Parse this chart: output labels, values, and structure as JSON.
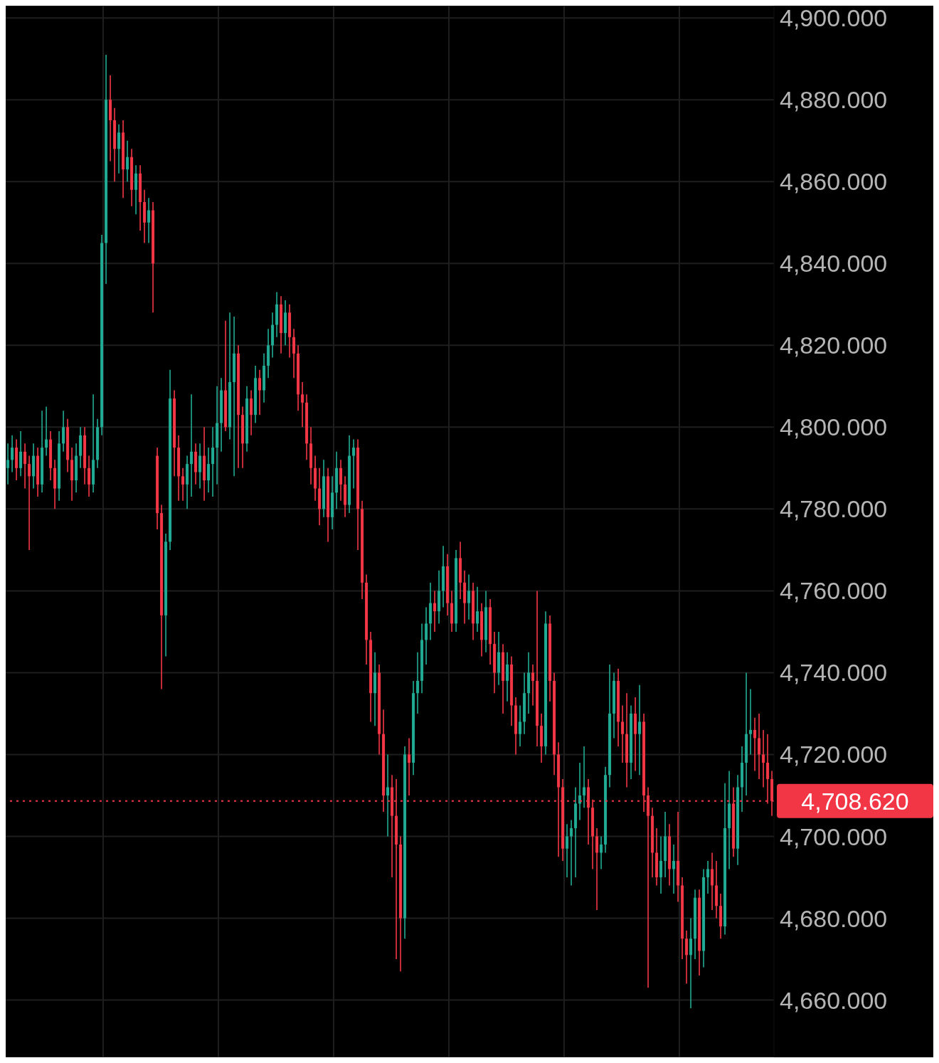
{
  "chart_data": {
    "type": "candlestick",
    "categories": [
      null,
      null,
      null,
      null,
      null,
      null,
      null,
      null,
      null,
      null,
      null,
      null,
      null,
      null,
      null,
      null,
      null,
      null,
      null,
      null,
      null,
      null,
      null,
      null,
      null,
      null,
      null,
      null,
      null,
      null,
      null,
      null,
      null,
      null,
      null,
      null,
      null,
      null,
      null,
      null,
      null,
      null,
      null,
      null,
      null,
      null,
      null,
      null,
      null,
      null,
      null,
      null,
      null,
      null,
      null,
      null,
      null,
      null,
      null,
      null,
      null,
      null,
      null,
      null,
      null,
      null,
      null,
      null,
      null,
      null,
      null,
      null,
      null,
      null,
      null,
      null,
      null,
      null,
      null,
      null,
      null,
      null,
      null,
      null,
      null,
      null,
      null,
      null,
      null,
      null,
      null,
      null,
      null,
      null,
      null,
      null,
      null,
      null,
      null,
      null,
      null,
      null,
      null,
      null,
      null,
      null,
      null,
      null,
      null,
      null,
      null,
      null,
      null,
      null,
      null,
      null,
      null,
      null,
      null,
      null,
      null,
      null,
      null,
      null,
      null,
      null,
      null,
      null,
      null,
      null,
      null,
      null,
      null,
      null,
      null,
      null,
      null,
      null,
      null,
      null,
      null,
      null,
      null,
      null,
      null,
      null,
      null,
      null,
      null,
      null,
      null,
      null,
      null,
      null,
      null,
      null,
      null,
      null,
      null,
      null,
      null,
      null,
      null,
      null,
      null,
      null,
      null,
      null,
      null,
      null,
      null,
      null,
      null,
      null,
      null,
      null,
      null,
      null,
      null,
      null
    ],
    "ohlc": [
      [
        4790,
        4796,
        4786,
        4792
      ],
      [
        4792,
        4798,
        4789,
        4795
      ],
      [
        4795,
        4797,
        4787,
        4790
      ],
      [
        4790,
        4799,
        4788,
        4794
      ],
      [
        4794,
        4796,
        4785,
        4791
      ],
      [
        4791,
        4793,
        4770,
        4788
      ],
      [
        4788,
        4796,
        4785,
        4793
      ],
      [
        4793,
        4795,
        4783,
        4786
      ],
      [
        4786,
        4804,
        4784,
        4795
      ],
      [
        4795,
        4805,
        4793,
        4797
      ],
      [
        4797,
        4799,
        4787,
        4790
      ],
      [
        4790,
        4792,
        4780,
        4785
      ],
      [
        4785,
        4799,
        4782,
        4796
      ],
      [
        4796,
        4804,
        4794,
        4800
      ],
      [
        4800,
        4802,
        4789,
        4792
      ],
      [
        4792,
        4795,
        4782,
        4787
      ],
      [
        4787,
        4796,
        4784,
        4793
      ],
      [
        4793,
        4800,
        4790,
        4798
      ],
      [
        4798,
        4800,
        4786,
        4790
      ],
      [
        4790,
        4793,
        4783,
        4786
      ],
      [
        4786,
        4808,
        4784,
        4792
      ],
      [
        4792,
        4802,
        4790,
        4800
      ],
      [
        4800,
        4847,
        4798,
        4845
      ],
      [
        4845,
        4891,
        4835,
        4880
      ],
      [
        4880,
        4886,
        4865,
        4875
      ],
      [
        4875,
        4878,
        4860,
        4868
      ],
      [
        4868,
        4874,
        4862,
        4872
      ],
      [
        4872,
        4875,
        4856,
        4863
      ],
      [
        4863,
        4870,
        4860,
        4866
      ],
      [
        4866,
        4868,
        4854,
        4858
      ],
      [
        4858,
        4864,
        4852,
        4862
      ],
      [
        4862,
        4864,
        4848,
        4855
      ],
      [
        4855,
        4858,
        4845,
        4850
      ],
      [
        4850,
        4856,
        4845,
        4853
      ],
      [
        4853,
        4855,
        4828,
        4840
      ],
      [
        4793,
        4795,
        4775,
        4779
      ],
      [
        4779,
        4781,
        4736,
        4754
      ],
      [
        4754,
        4774,
        4744,
        4772
      ],
      [
        4772,
        4814,
        4770,
        4807
      ],
      [
        4807,
        4809,
        4788,
        4795
      ],
      [
        4795,
        4798,
        4782,
        4788
      ],
      [
        4788,
        4790,
        4782,
        4786
      ],
      [
        4786,
        4793,
        4780,
        4791
      ],
      [
        4791,
        4808,
        4783,
        4794
      ],
      [
        4794,
        4796,
        4786,
        4789
      ],
      [
        4789,
        4796,
        4785,
        4793
      ],
      [
        4793,
        4800,
        4782,
        4787
      ],
      [
        4787,
        4795,
        4784,
        4791
      ],
      [
        4791,
        4800,
        4783,
        4795
      ],
      [
        4795,
        4810,
        4786,
        4801
      ],
      [
        4801,
        4812,
        4794,
        4809
      ],
      [
        4809,
        4826,
        4799,
        4800
      ],
      [
        4800,
        4828,
        4797,
        4811
      ],
      [
        4811,
        4827,
        4788,
        4818
      ],
      [
        4818,
        4820,
        4790,
        4803
      ],
      [
        4803,
        4805,
        4790,
        4796
      ],
      [
        4796,
        4810,
        4794,
        4807
      ],
      [
        4807,
        4809,
        4798,
        4803
      ],
      [
        4803,
        4815,
        4801,
        4812
      ],
      [
        4812,
        4814,
        4803,
        4809
      ],
      [
        4809,
        4818,
        4806,
        4815
      ],
      [
        4815,
        4824,
        4812,
        4820
      ],
      [
        4820,
        4828,
        4817,
        4825
      ],
      [
        4825,
        4833,
        4822,
        4830
      ],
      [
        4830,
        4832,
        4818,
        4823
      ],
      [
        4823,
        4831,
        4820,
        4828
      ],
      [
        4828,
        4830,
        4817,
        4822
      ],
      [
        4822,
        4824,
        4812,
        4818
      ],
      [
        4818,
        4820,
        4804,
        4808
      ],
      [
        4808,
        4811,
        4800,
        4806
      ],
      [
        4806,
        4808,
        4792,
        4796
      ],
      [
        4796,
        4800,
        4786,
        4790
      ],
      [
        4790,
        4793,
        4782,
        4785
      ],
      [
        4785,
        4790,
        4776,
        4780
      ],
      [
        4780,
        4792,
        4778,
        4788
      ],
      [
        4788,
        4790,
        4772,
        4778
      ],
      [
        4778,
        4788,
        4775,
        4784
      ],
      [
        4784,
        4794,
        4780,
        4790
      ],
      [
        4790,
        4792,
        4782,
        4786
      ],
      [
        4786,
        4788,
        4778,
        4781
      ],
      [
        4781,
        4798,
        4779,
        4793
      ],
      [
        4793,
        4797,
        4785,
        4795
      ],
      [
        4795,
        4797,
        4770,
        4780
      ],
      [
        4780,
        4782,
        4758,
        4762
      ],
      [
        4762,
        4764,
        4742,
        4748
      ],
      [
        4748,
        4750,
        4728,
        4735
      ],
      [
        4735,
        4745,
        4727,
        4740
      ],
      [
        4740,
        4742,
        4720,
        4725
      ],
      [
        4725,
        4731,
        4706,
        4710
      ],
      [
        4710,
        4720,
        4700,
        4712
      ],
      [
        4712,
        4715,
        4690,
        4705
      ],
      [
        4705,
        4714,
        4670,
        4698
      ],
      [
        4698,
        4700,
        4667,
        4680
      ],
      [
        4680,
        4722,
        4675,
        4720
      ],
      [
        4720,
        4724,
        4710,
        4718
      ],
      [
        4718,
        4738,
        4715,
        4735
      ],
      [
        4735,
        4745,
        4730,
        4738
      ],
      [
        4738,
        4752,
        4735,
        4748
      ],
      [
        4748,
        4756,
        4742,
        4752
      ],
      [
        4752,
        4762,
        4748,
        4757
      ],
      [
        4757,
        4760,
        4750,
        4755
      ],
      [
        4755,
        4765,
        4752,
        4760
      ],
      [
        4760,
        4771,
        4756,
        4766
      ],
      [
        4766,
        4769,
        4754,
        4757
      ],
      [
        4757,
        4760,
        4750,
        4752
      ],
      [
        4752,
        4770,
        4750,
        4768
      ],
      [
        4768,
        4772,
        4758,
        4762
      ],
      [
        4762,
        4765,
        4752,
        4757
      ],
      [
        4757,
        4764,
        4753,
        4760
      ],
      [
        4760,
        4762,
        4748,
        4752
      ],
      [
        4752,
        4761,
        4750,
        4755
      ],
      [
        4755,
        4757,
        4744,
        4748
      ],
      [
        4748,
        4760,
        4745,
        4756
      ],
      [
        4756,
        4758,
        4742,
        4747
      ],
      [
        4747,
        4750,
        4735,
        4740
      ],
      [
        4740,
        4750,
        4737,
        4745
      ],
      [
        4745,
        4747,
        4730,
        4738
      ],
      [
        4738,
        4745,
        4733,
        4742
      ],
      [
        4742,
        4744,
        4727,
        4732
      ],
      [
        4732,
        4734,
        4720,
        4725
      ],
      [
        4725,
        4732,
        4722,
        4728
      ],
      [
        4728,
        4740,
        4725,
        4735
      ],
      [
        4735,
        4745,
        4730,
        4740
      ],
      [
        4740,
        4742,
        4732,
        4738
      ],
      [
        4738,
        4760,
        4722,
        4727
      ],
      [
        4727,
        4730,
        4718,
        4722
      ],
      [
        4722,
        4755,
        4720,
        4752
      ],
      [
        4752,
        4754,
        4733,
        4738
      ],
      [
        4738,
        4740,
        4715,
        4720
      ],
      [
        4720,
        4723,
        4695,
        4712
      ],
      [
        4712,
        4714,
        4694,
        4697
      ],
      [
        4697,
        4703,
        4690,
        4700
      ],
      [
        4700,
        4704,
        4688,
        4702
      ],
      [
        4702,
        4712,
        4690,
        4708
      ],
      [
        4708,
        4718,
        4704,
        4710
      ],
      [
        4710,
        4722,
        4707,
        4712
      ],
      [
        4712,
        4714,
        4698,
        4707
      ],
      [
        4707,
        4709,
        4692,
        4700
      ],
      [
        4700,
        4702,
        4682,
        4696
      ],
      [
        4696,
        4700,
        4692,
        4698
      ],
      [
        4698,
        4717,
        4696,
        4715
      ],
      [
        4715,
        4742,
        4712,
        4730
      ],
      [
        4730,
        4740,
        4724,
        4738
      ],
      [
        4738,
        4741,
        4722,
        4728
      ],
      [
        4728,
        4732,
        4718,
        4725
      ],
      [
        4725,
        4735,
        4712,
        4718
      ],
      [
        4718,
        4732,
        4714,
        4730
      ],
      [
        4730,
        4734,
        4716,
        4725
      ],
      [
        4725,
        4737,
        4715,
        4728
      ],
      [
        4728,
        4730,
        4706,
        4710
      ],
      [
        4710,
        4712,
        4663,
        4705
      ],
      [
        4705,
        4707,
        4690,
        4696
      ],
      [
        4696,
        4702,
        4688,
        4690
      ],
      [
        4690,
        4700,
        4686,
        4694
      ],
      [
        4694,
        4706,
        4690,
        4700
      ],
      [
        4700,
        4703,
        4688,
        4692
      ],
      [
        4692,
        4698,
        4686,
        4694
      ],
      [
        4694,
        4706,
        4684,
        4688
      ],
      [
        4688,
        4690,
        4670,
        4675
      ],
      [
        4675,
        4677,
        4664,
        4671
      ],
      [
        4671,
        4680,
        4658,
        4675
      ],
      [
        4675,
        4687,
        4670,
        4685
      ],
      [
        4685,
        4687,
        4666,
        4672
      ],
      [
        4672,
        4692,
        4668,
        4690
      ],
      [
        4690,
        4694,
        4686,
        4692
      ],
      [
        4692,
        4696,
        4682,
        4688
      ],
      [
        4688,
        4694,
        4680,
        4683
      ],
      [
        4683,
        4686,
        4675,
        4678
      ],
      [
        4678,
        4713,
        4676,
        4702
      ],
      [
        4702,
        4716,
        4692,
        4708
      ],
      [
        4708,
        4712,
        4695,
        4697
      ],
      [
        4697,
        4715,
        4693,
        4712
      ],
      [
        4712,
        4722,
        4706,
        4718
      ],
      [
        4718,
        4740,
        4710,
        4725
      ],
      [
        4725,
        4736,
        4720,
        4726
      ],
      [
        4726,
        4729,
        4716,
        4724
      ],
      [
        4724,
        4730,
        4714,
        4720
      ],
      [
        4720,
        4726,
        4712,
        4718
      ],
      [
        4718,
        4725,
        4708,
        4714
      ],
      [
        4714,
        4716,
        4705,
        4708.62
      ]
    ],
    "colors": [
      "#22ab94",
      "#22ab94",
      "#f23645",
      "#22ab94",
      "#f23645",
      "#f23645",
      "#22ab94",
      "#f23645",
      "#22ab94",
      "#22ab94",
      "#f23645",
      "#f23645",
      "#22ab94",
      "#22ab94",
      "#f23645",
      "#f23645",
      "#22ab94",
      "#22ab94",
      "#f23645",
      "#f23645",
      "#22ab94",
      "#22ab94",
      "#22ab94",
      "#22ab94",
      "#f23645",
      "#f23645",
      "#22ab94",
      "#f23645",
      "#22ab94",
      "#f23645",
      "#22ab94",
      "#f23645",
      "#f23645",
      "#22ab94",
      "#f23645",
      "#f23645",
      "#f23645",
      "#22ab94",
      "#22ab94",
      "#f23645",
      "#f23645",
      "#f23645",
      "#22ab94",
      "#22ab94",
      "#f23645",
      "#22ab94",
      "#f23645",
      "#22ab94",
      "#22ab94",
      "#22ab94",
      "#22ab94",
      "#f23645",
      "#22ab94",
      "#22ab94",
      "#f23645",
      "#f23645",
      "#22ab94",
      "#f23645",
      "#22ab94",
      "#f23645",
      "#22ab94",
      "#22ab94",
      "#22ab94",
      "#22ab94",
      "#f23645",
      "#22ab94",
      "#f23645",
      "#f23645",
      "#f23645",
      "#f23645",
      "#f23645",
      "#f23645",
      "#f23645",
      "#f23645",
      "#22ab94",
      "#f23645",
      "#22ab94",
      "#22ab94",
      "#f23645",
      "#f23645",
      "#22ab94",
      "#22ab94",
      "#f23645",
      "#f23645",
      "#f23645",
      "#f23645",
      "#22ab94",
      "#f23645",
      "#f23645",
      "#22ab94",
      "#f23645",
      "#f23645",
      "#f23645",
      "#22ab94",
      "#f23645",
      "#22ab94",
      "#22ab94",
      "#22ab94",
      "#22ab94",
      "#22ab94",
      "#f23645",
      "#22ab94",
      "#22ab94",
      "#f23645",
      "#f23645",
      "#22ab94",
      "#f23645",
      "#f23645",
      "#22ab94",
      "#f23645",
      "#22ab94",
      "#f23645",
      "#22ab94",
      "#f23645",
      "#f23645",
      "#22ab94",
      "#f23645",
      "#22ab94",
      "#f23645",
      "#f23645",
      "#22ab94",
      "#22ab94",
      "#22ab94",
      "#f23645",
      "#f23645",
      "#f23645",
      "#22ab94",
      "#f23645",
      "#f23645",
      "#f23645",
      "#f23645",
      "#22ab94",
      "#22ab94",
      "#22ab94",
      "#22ab94",
      "#22ab94",
      "#f23645",
      "#f23645",
      "#f23645",
      "#22ab94",
      "#22ab94",
      "#22ab94",
      "#22ab94",
      "#f23645",
      "#f23645",
      "#f23645",
      "#22ab94",
      "#f23645",
      "#22ab94",
      "#f23645",
      "#f23645",
      "#f23645",
      "#f23645",
      "#22ab94",
      "#22ab94",
      "#f23645",
      "#22ab94",
      "#f23645",
      "#f23645",
      "#f23645",
      "#22ab94",
      "#22ab94",
      "#f23645",
      "#22ab94",
      "#22ab94",
      "#f23645",
      "#f23645",
      "#f23645",
      "#22ab94",
      "#22ab94",
      "#f23645",
      "#22ab94",
      "#22ab94",
      "#22ab94",
      "#22ab94",
      "#f23645",
      "#f23645",
      "#f23645",
      "#f23645",
      "#f23645"
    ],
    "ylim": [
      4646,
      4903
    ],
    "yticks": [
      {
        "value": 4660,
        "label": "4,660.000"
      },
      {
        "value": 4680,
        "label": "4,680.000"
      },
      {
        "value": 4700,
        "label": "4,700.000"
      },
      {
        "value": 4720,
        "label": "4,720.000"
      },
      {
        "value": 4740,
        "label": "4,740.000"
      },
      {
        "value": 4760,
        "label": "4,760.000"
      },
      {
        "value": 4780,
        "label": "4,780.000"
      },
      {
        "value": 4800,
        "label": "4,800.000"
      },
      {
        "value": 4820,
        "label": "4,820.000"
      },
      {
        "value": 4840,
        "label": "4,840.000"
      },
      {
        "value": 4860,
        "label": "4,860.000"
      },
      {
        "value": 4880,
        "label": "4,880.000"
      },
      {
        "value": 4900,
        "label": "4,900.000"
      }
    ],
    "ref_lines": [
      {
        "axis": "y",
        "value": 4708.62,
        "label": "4,708.620",
        "color": "#f23645",
        "line_style": "dotted"
      }
    ],
    "grid": true,
    "tick_labels": "y"
  }
}
